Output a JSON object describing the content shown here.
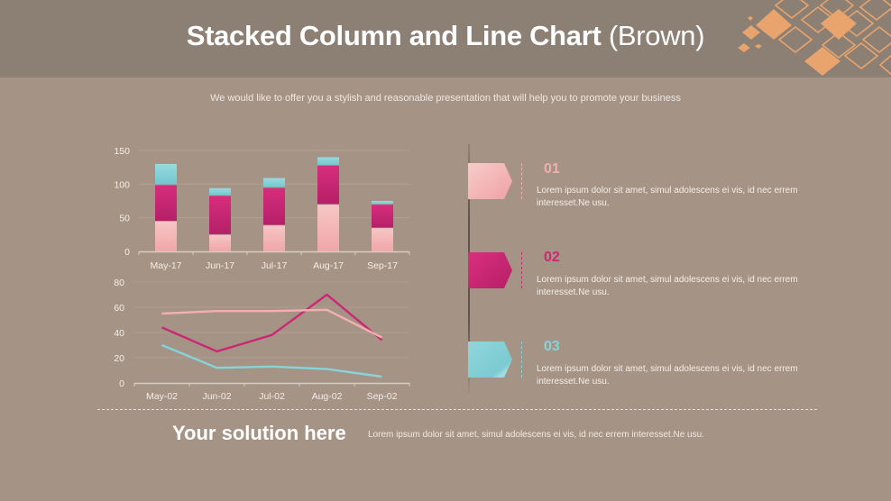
{
  "header": {
    "title_bold": "Stacked Column and Line Chart",
    "title_light": "(Brown)",
    "background_color": "#8c7f74",
    "decoration": "orange-diamond-pattern",
    "decoration_color": "#e8a46c"
  },
  "subtitle": "We would like to offer you a stylish and reasonable presentation that will help you to promote your business",
  "colors": {
    "background": "#a59486",
    "light_pink": "#f2aeb0",
    "magenta": "#cc2773",
    "teal": "#86d3da"
  },
  "chart_data": [
    {
      "type": "bar",
      "stacked": true,
      "title": "",
      "xlabel": "",
      "ylabel": "",
      "categories": [
        "May-17",
        "Jun-17",
        "Jul-17",
        "Aug-17",
        "Sep-17"
      ],
      "series": [
        {
          "name": "Series 1",
          "color": "#f2aeb0",
          "values": [
            45,
            25,
            39,
            70,
            35
          ]
        },
        {
          "name": "Series 2",
          "color": "#cc2773",
          "values": [
            54,
            58,
            56,
            58,
            35
          ]
        },
        {
          "name": "Series 3",
          "color": "#86d3da",
          "values": [
            31,
            11,
            14,
            12,
            5
          ]
        }
      ],
      "ylim": [
        0,
        150
      ],
      "yticks": [
        0,
        50,
        100,
        150
      ],
      "grid": true,
      "legend": "none"
    },
    {
      "type": "line",
      "title": "",
      "xlabel": "",
      "ylabel": "",
      "categories": [
        "May-02",
        "Jun-02",
        "Jul-02",
        "Aug-02",
        "Sep-02"
      ],
      "series": [
        {
          "name": "Series 1",
          "color": "#f2aeb0",
          "values": [
            55,
            57,
            57,
            58,
            36
          ]
        },
        {
          "name": "Series 2",
          "color": "#cc2773",
          "values": [
            44,
            25,
            38,
            70,
            34
          ]
        },
        {
          "name": "Series 3",
          "color": "#86d3da",
          "values": [
            30,
            12,
            13,
            11,
            5
          ]
        }
      ],
      "ylim": [
        0,
        80
      ],
      "yticks": [
        0,
        20,
        40,
        60,
        80
      ],
      "grid": true,
      "legend": "none"
    }
  ],
  "items": [
    {
      "number": "01",
      "color": "#f2aeb0",
      "text_line1": "Lorem ipsum dolor sit amet, simul adolescens ei vis, id nec errem",
      "text_line2": "interesset.Ne usu."
    },
    {
      "number": "02",
      "color": "#cc2773",
      "text_line1": "Lorem ipsum dolor sit amet, simul adolescens ei vis, id nec errem",
      "text_line2": "interesset.Ne usu."
    },
    {
      "number": "03",
      "color": "#86d3da",
      "text_line1": "Lorem ipsum dolor sit amet, simul adolescens ei vis, id nec errem",
      "text_line2": "interesset.Ne usu."
    }
  ],
  "footer": {
    "title": "Your solution here",
    "text": "Lorem ipsum dolor sit amet, simul adolescens ei vis, id nec errem interesset.Ne usu."
  }
}
